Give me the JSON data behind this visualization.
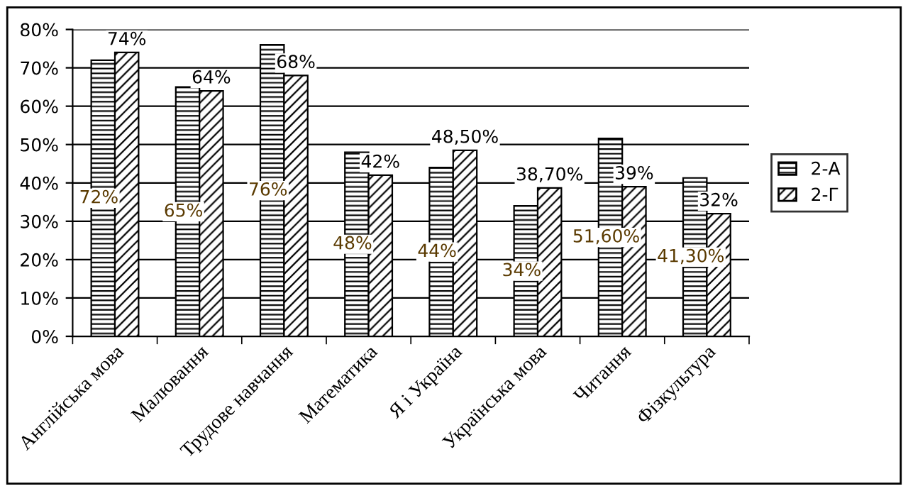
{
  "chart_data": {
    "type": "bar",
    "categories": [
      "Англійська мова",
      "Малювання",
      "Трудове навчання",
      "Математика",
      "Я і Україна",
      "Українська мова",
      "Читання",
      "Фізкультура"
    ],
    "series": [
      {
        "name": "2-А",
        "color": "#000000",
        "values": [
          72,
          65,
          76,
          48,
          44,
          34,
          51.6,
          41.3
        ],
        "value_labels": [
          "72%",
          "65%",
          "76%",
          "48%",
          "44%",
          "34%",
          "51,60%",
          "41,30%"
        ]
      },
      {
        "name": "2-Г",
        "color": "#000000",
        "values": [
          74,
          64,
          68,
          42,
          48.5,
          38.7,
          39,
          32
        ],
        "value_labels": [
          "74%",
          "64%",
          "68%",
          "42%",
          "48,50%",
          "38,70%",
          "39%",
          "32%"
        ]
      }
    ],
    "ylim": [
      0,
      80
    ],
    "yticks": [
      {
        "value": 0,
        "label": "0%"
      },
      {
        "value": 10,
        "label": "10%"
      },
      {
        "value": 20,
        "label": "20%"
      },
      {
        "value": 30,
        "label": "30%"
      },
      {
        "value": 40,
        "label": "40%"
      },
      {
        "value": 50,
        "label": "50%"
      },
      {
        "value": 60,
        "label": "60%"
      },
      {
        "value": 70,
        "label": "70%"
      },
      {
        "value": 80,
        "label": "80%"
      }
    ],
    "grid": "y",
    "legend": "right"
  }
}
